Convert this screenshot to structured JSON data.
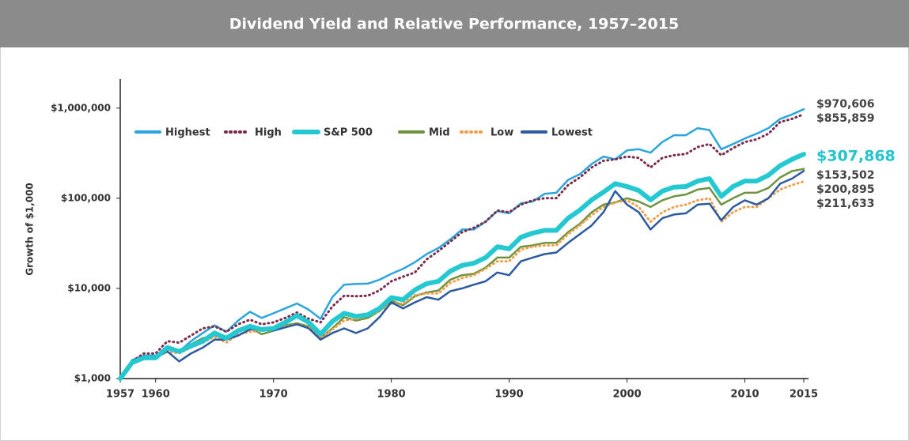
{
  "chart_data": {
    "type": "line",
    "title": "Dividend Yield and Relative Performance, 1957–2015",
    "y_label": "Growth of $1,000",
    "log_scale": true,
    "grid": false,
    "legend": "top-left",
    "xlim": [
      1957,
      2015
    ],
    "xticks": [
      1957,
      1960,
      1970,
      1980,
      1990,
      2000,
      2010,
      2015
    ],
    "ylim": [
      1000,
      2100000
    ],
    "yticks": [
      {
        "value": 1000,
        "label": "$1,000"
      },
      {
        "value": 10000,
        "label": "$10,000"
      },
      {
        "value": 100000,
        "label": "$100,000"
      },
      {
        "value": 1000000,
        "label": "$1,000,000"
      }
    ],
    "x": [
      1957,
      1958,
      1959,
      1960,
      1961,
      1962,
      1963,
      1964,
      1965,
      1966,
      1967,
      1968,
      1969,
      1970,
      1971,
      1972,
      1973,
      1974,
      1975,
      1976,
      1977,
      1978,
      1979,
      1980,
      1981,
      1982,
      1983,
      1984,
      1985,
      1986,
      1987,
      1988,
      1989,
      1990,
      1991,
      1992,
      1993,
      1994,
      1995,
      1996,
      1997,
      1998,
      1999,
      2000,
      2001,
      2002,
      2003,
      2004,
      2005,
      2006,
      2007,
      2008,
      2009,
      2010,
      2011,
      2012,
      2013,
      2014,
      2015
    ],
    "series": [
      {
        "name": "Highest",
        "color": "#2aa6dc",
        "dash": "solid",
        "end_label": "$970,606",
        "values": [
          1000,
          1600,
          1800,
          1800,
          2200,
          2000,
          2600,
          3200,
          3900,
          3300,
          4400,
          5500,
          4700,
          5300,
          6000,
          6800,
          5800,
          4600,
          8000,
          11000,
          11200,
          11300,
          12500,
          14500,
          16500,
          19500,
          24000,
          28000,
          35000,
          45000,
          45000,
          55000,
          72000,
          68000,
          88000,
          92000,
          112000,
          115000,
          160000,
          185000,
          240000,
          290000,
          270000,
          340000,
          350000,
          320000,
          420000,
          500000,
          500000,
          600000,
          570000,
          350000,
          400000,
          460000,
          520000,
          600000,
          760000,
          850000,
          970606
        ]
      },
      {
        "name": "High",
        "color": "#7b2a4a",
        "dash": "dotted",
        "end_label": "$855,859",
        "values": [
          1000,
          1550,
          1900,
          1900,
          2600,
          2500,
          3000,
          3600,
          3800,
          3300,
          4000,
          4500,
          4000,
          4200,
          4700,
          5400,
          4600,
          4200,
          6300,
          8300,
          8200,
          8300,
          9500,
          12000,
          13500,
          15000,
          21000,
          26000,
          33000,
          42000,
          47000,
          55000,
          73000,
          70000,
          85000,
          95000,
          100000,
          100000,
          140000,
          170000,
          220000,
          260000,
          270000,
          290000,
          280000,
          220000,
          280000,
          300000,
          310000,
          370000,
          400000,
          300000,
          360000,
          420000,
          450000,
          520000,
          700000,
          760000,
          855859
        ]
      },
      {
        "name": "S&P 500",
        "color": "#23c8d0",
        "dash": "solid",
        "end_label": "$307,868",
        "values": [
          1000,
          1500,
          1700,
          1700,
          2200,
          2000,
          2300,
          2600,
          3200,
          2800,
          3400,
          3800,
          3500,
          3600,
          4200,
          5000,
          4200,
          3100,
          4300,
          5300,
          4900,
          5100,
          6000,
          7900,
          7500,
          9600,
          11300,
          12000,
          15500,
          18000,
          19000,
          22000,
          29000,
          27500,
          37000,
          41000,
          44000,
          44000,
          60000,
          74000,
          96000,
          117000,
          145000,
          135000,
          122000,
          96000,
          120000,
          133000,
          135000,
          155000,
          165000,
          105000,
          135000,
          155000,
          155000,
          180000,
          230000,
          270000,
          307868
        ]
      },
      {
        "name": "Mid",
        "color": "#6e9440",
        "dash": "solid",
        "end_label": "$211,633",
        "values": [
          1000,
          1500,
          1700,
          1700,
          2100,
          2000,
          2400,
          2800,
          3000,
          2800,
          3300,
          3700,
          3100,
          3400,
          3900,
          4100,
          3800,
          2800,
          3600,
          4800,
          4400,
          4700,
          5600,
          7300,
          6500,
          8200,
          9000,
          9500,
          12500,
          14000,
          14500,
          17000,
          22000,
          22000,
          29000,
          30000,
          32000,
          32000,
          42000,
          52000,
          70000,
          85000,
          90000,
          100000,
          92000,
          80000,
          95000,
          105000,
          110000,
          125000,
          130000,
          85000,
          100000,
          115000,
          115000,
          130000,
          170000,
          200000,
          211633
        ]
      },
      {
        "name": "Low",
        "color": "#f0a04a",
        "dash": "dotted",
        "end_label": "$153,502",
        "values": [
          1000,
          1450,
          1700,
          1700,
          2000,
          1900,
          2200,
          2500,
          2900,
          2500,
          3100,
          3300,
          3400,
          3400,
          3800,
          4000,
          3700,
          2800,
          3500,
          4400,
          4600,
          5000,
          5600,
          6800,
          6800,
          8400,
          8800,
          8800,
          11500,
          13000,
          14000,
          16500,
          20000,
          20000,
          27000,
          29000,
          30000,
          30000,
          40000,
          50000,
          65000,
          80000,
          90000,
          95000,
          80000,
          55000,
          70000,
          80000,
          85000,
          95000,
          100000,
          55000,
          70000,
          80000,
          80000,
          100000,
          125000,
          140000,
          153502
        ]
      },
      {
        "name": "Lowest",
        "color": "#2b5aa0",
        "dash": "solid",
        "end_label": "$200,895",
        "values": [
          1000,
          1550,
          1700,
          1700,
          2000,
          1550,
          1900,
          2200,
          2700,
          2700,
          3000,
          3500,
          3500,
          3400,
          3700,
          4000,
          3600,
          2700,
          3200,
          3600,
          3200,
          3600,
          4800,
          7000,
          6000,
          7000,
          8000,
          7500,
          9300,
          10000,
          11000,
          12000,
          15000,
          14000,
          20000,
          22000,
          24000,
          25000,
          32000,
          40000,
          50000,
          70000,
          120000,
          85000,
          70000,
          45000,
          60000,
          66000,
          68000,
          85000,
          87000,
          57000,
          80000,
          95000,
          85000,
          100000,
          145000,
          165000,
          200895
        ]
      }
    ]
  }
}
